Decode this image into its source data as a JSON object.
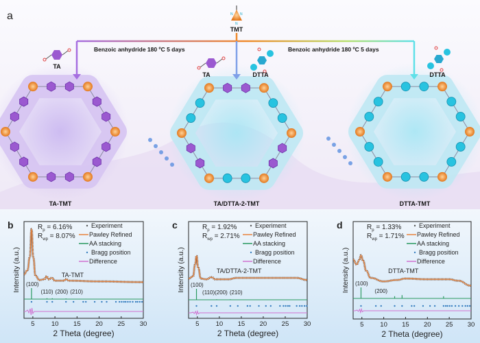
{
  "panel_a": {
    "letter": "a",
    "center_monomer": "TMT",
    "condition_left": "Benzoic anhydride  180 ºC  5 days",
    "condition_right": "Benzoic anhydride  180 ºC  5 days",
    "monomers": [
      "TA",
      "TA",
      "DTTA",
      "DTTA"
    ],
    "framework_labels": [
      "TA-TMT",
      "TA/DTTA-2-TMT",
      "DTTA-TMT"
    ],
    "colors": {
      "ta_linker": "#9b59d0",
      "dtta_linker": "#28c3e0",
      "node": "#f0922e",
      "line_left": "#a66ee0",
      "line_mid": "#f08a2c",
      "line_right": "#5ee0e8"
    }
  },
  "chart_data": [
    {
      "letter": "b",
      "type": "line",
      "sample": "TA-TMT",
      "rp": "R",
      "rp_sub": "p",
      "rp_value": " =  6.16%",
      "rwp": "R",
      "rwp_sub": "wp",
      "rwp_value": " = 8.07%",
      "xlabel": "2 Theta (degree)",
      "ylabel": "Intensity (a.u.)",
      "xlim": [
        3,
        30
      ],
      "xticks": [
        5,
        10,
        15,
        20,
        25,
        30
      ],
      "legend": [
        "Experiment",
        "Pawley Refined",
        "AA stacking",
        "Bragg position",
        "Difference"
      ],
      "legend_position": "top-right",
      "peak_labels": [
        {
          "text": "(100)",
          "x": 4.7
        },
        {
          "text": "(110)",
          "x": 8.2
        },
        {
          "text": "(200)",
          "x": 9.4
        },
        {
          "text": "(210)",
          "x": 12.5
        }
      ],
      "experiment": [
        [
          3,
          0.36
        ],
        [
          3.8,
          0.42
        ],
        [
          4.3,
          0.6
        ],
        [
          4.7,
          1.0
        ],
        [
          5.1,
          0.6
        ],
        [
          5.6,
          0.34
        ],
        [
          6.5,
          0.28
        ],
        [
          7.6,
          0.29
        ],
        [
          8.1,
          0.33
        ],
        [
          8.6,
          0.29
        ],
        [
          9.3,
          0.31
        ],
        [
          10,
          0.27
        ],
        [
          12,
          0.27
        ],
        [
          12.5,
          0.29
        ],
        [
          13.2,
          0.27
        ],
        [
          20,
          0.26
        ],
        [
          30,
          0.25
        ]
      ],
      "aa_peaks": [
        [
          4.7,
          1.0
        ],
        [
          8.2,
          0.08
        ],
        [
          9.4,
          0.08
        ],
        [
          12.5,
          0.06
        ]
      ],
      "bragg": [
        4.7,
        8.2,
        9.4,
        12.5,
        14.2,
        16.4,
        17.0,
        19.0,
        20.6,
        21.7,
        23.8,
        24.6,
        25.1,
        25.6,
        26.0,
        26.5,
        27.0,
        27.6,
        28.3,
        28.7,
        29.2,
        29.7
      ],
      "difference_wiggle": 4.6
    },
    {
      "letter": "c",
      "type": "line",
      "sample": "TA/DTTA-2-TMT",
      "rp": "R",
      "rp_sub": "p",
      "rp_value": " = 1.92%",
      "rwp": "R",
      "rwp_sub": "wp",
      "rwp_value": " = 2.71%",
      "xlabel": "2 Theta (degree)",
      "ylabel": "Intensity (a.u.)",
      "xlim": [
        3,
        30
      ],
      "xticks": [
        5,
        10,
        15,
        20,
        25,
        30
      ],
      "legend": [
        "Experiment",
        "Pawley Refined",
        "AA stacking",
        "Bragg position",
        "Difference"
      ],
      "legend_position": "top-right",
      "peak_labels": [
        {
          "text": "(100)",
          "x": 4.8
        },
        {
          "text": "(110)(200)",
          "x": 9.0
        },
        {
          "text": "(210)",
          "x": 12.5
        }
      ],
      "experiment": [
        [
          3,
          0.3
        ],
        [
          4,
          0.33
        ],
        [
          4.5,
          0.5
        ],
        [
          4.8,
          0.62
        ],
        [
          5.2,
          0.45
        ],
        [
          5.8,
          0.3
        ],
        [
          7,
          0.29
        ],
        [
          8.3,
          0.32
        ],
        [
          9,
          0.29
        ],
        [
          12,
          0.29
        ],
        [
          14,
          0.31
        ],
        [
          20,
          0.31
        ],
        [
          26,
          0.31
        ],
        [
          27.5,
          0.31
        ],
        [
          30,
          0.28
        ]
      ],
      "aa_peaks": [
        [
          4.8,
          1.0
        ],
        [
          9.4,
          0.05
        ],
        [
          12.5,
          0.05
        ]
      ],
      "bragg": [
        4.8,
        8.2,
        9.4,
        12.5,
        14.2,
        16.4,
        17.0,
        19.0,
        20.6,
        21.7,
        23.8,
        24.6,
        25.1,
        25.6,
        26.0,
        27.6,
        28.3,
        28.8,
        29.4,
        29.9
      ],
      "difference_wiggle": 4.8
    },
    {
      "letter": "d",
      "type": "line",
      "sample": "DTTA-TMT",
      "rp": "R",
      "rp_sub": "p",
      "rp_value": " = 1.33%",
      "rwp": "R",
      "rwp_sub": "wp",
      "rwp_value": " = 1.71%",
      "xlabel": "2 Theta (degree)",
      "ylabel": "Intensity (a.u.)",
      "xlim": [
        3,
        30
      ],
      "xticks": [
        5,
        10,
        15,
        20,
        25,
        30
      ],
      "legend": [
        "Experiment",
        "Pawley Refined",
        "AA stacking",
        "Bragg position",
        "Difference"
      ],
      "legend_position": "top-right",
      "peak_labels": [
        {
          "text": "(100)",
          "x": 4.8
        },
        {
          "text": "(200)",
          "x": 9.4
        }
      ],
      "experiment": [
        [
          3,
          0.57
        ],
        [
          3.8,
          0.5
        ],
        [
          4.4,
          0.56
        ],
        [
          4.8,
          0.63
        ],
        [
          5.3,
          0.55
        ],
        [
          6,
          0.41
        ],
        [
          7,
          0.31
        ],
        [
          10,
          0.26
        ],
        [
          13,
          0.28
        ],
        [
          15,
          0.3
        ],
        [
          20,
          0.29
        ],
        [
          25,
          0.29
        ],
        [
          27,
          0.27
        ],
        [
          30,
          0.2
        ]
      ],
      "aa_peaks": [
        [
          4.8,
          1.0
        ],
        [
          12.5,
          0.2
        ],
        [
          14.2,
          0.3
        ],
        [
          23.7,
          0.2
        ]
      ],
      "bragg": [
        4.8,
        8.2,
        9.4,
        12.5,
        14.2,
        16.4,
        17.0,
        19.0,
        20.6,
        21.7,
        23.7,
        24.2,
        24.6,
        25.1,
        25.6,
        26.4,
        27.2,
        28.0,
        28.7,
        29.2,
        29.7
      ],
      "difference_wiggle": 4.7
    }
  ]
}
